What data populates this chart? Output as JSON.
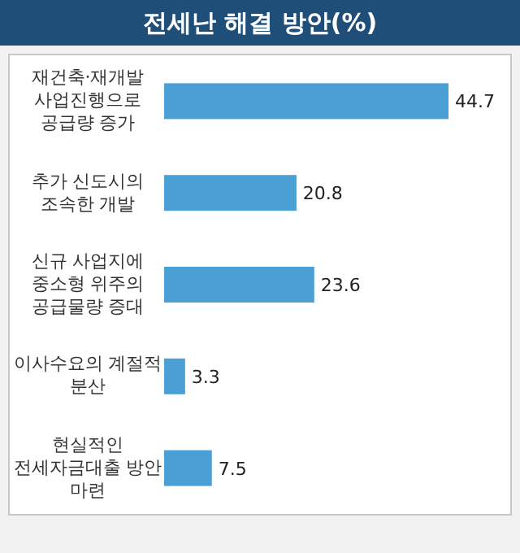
{
  "chart_data": {
    "type": "bar",
    "orientation": "horizontal",
    "title": "전세난 해결 방안(%)",
    "categories": [
      "재건축·재개발 사업진행으로 공급량 증가",
      "추가 신도시의 조속한 개발",
      "신규 사업지에 중소형 위주의 공급물량 증대",
      "이사수요의 계절적 분산",
      "현실적인 전세자금대출 방안 마련"
    ],
    "values": [
      44.7,
      20.8,
      23.6,
      3.3,
      7.5
    ],
    "colors": [
      "#4aa0d5",
      "#4aa0d5",
      "#4aa0d5",
      "#4aa0d5",
      "#4aa0d5"
    ],
    "data_labels": true
  }
}
